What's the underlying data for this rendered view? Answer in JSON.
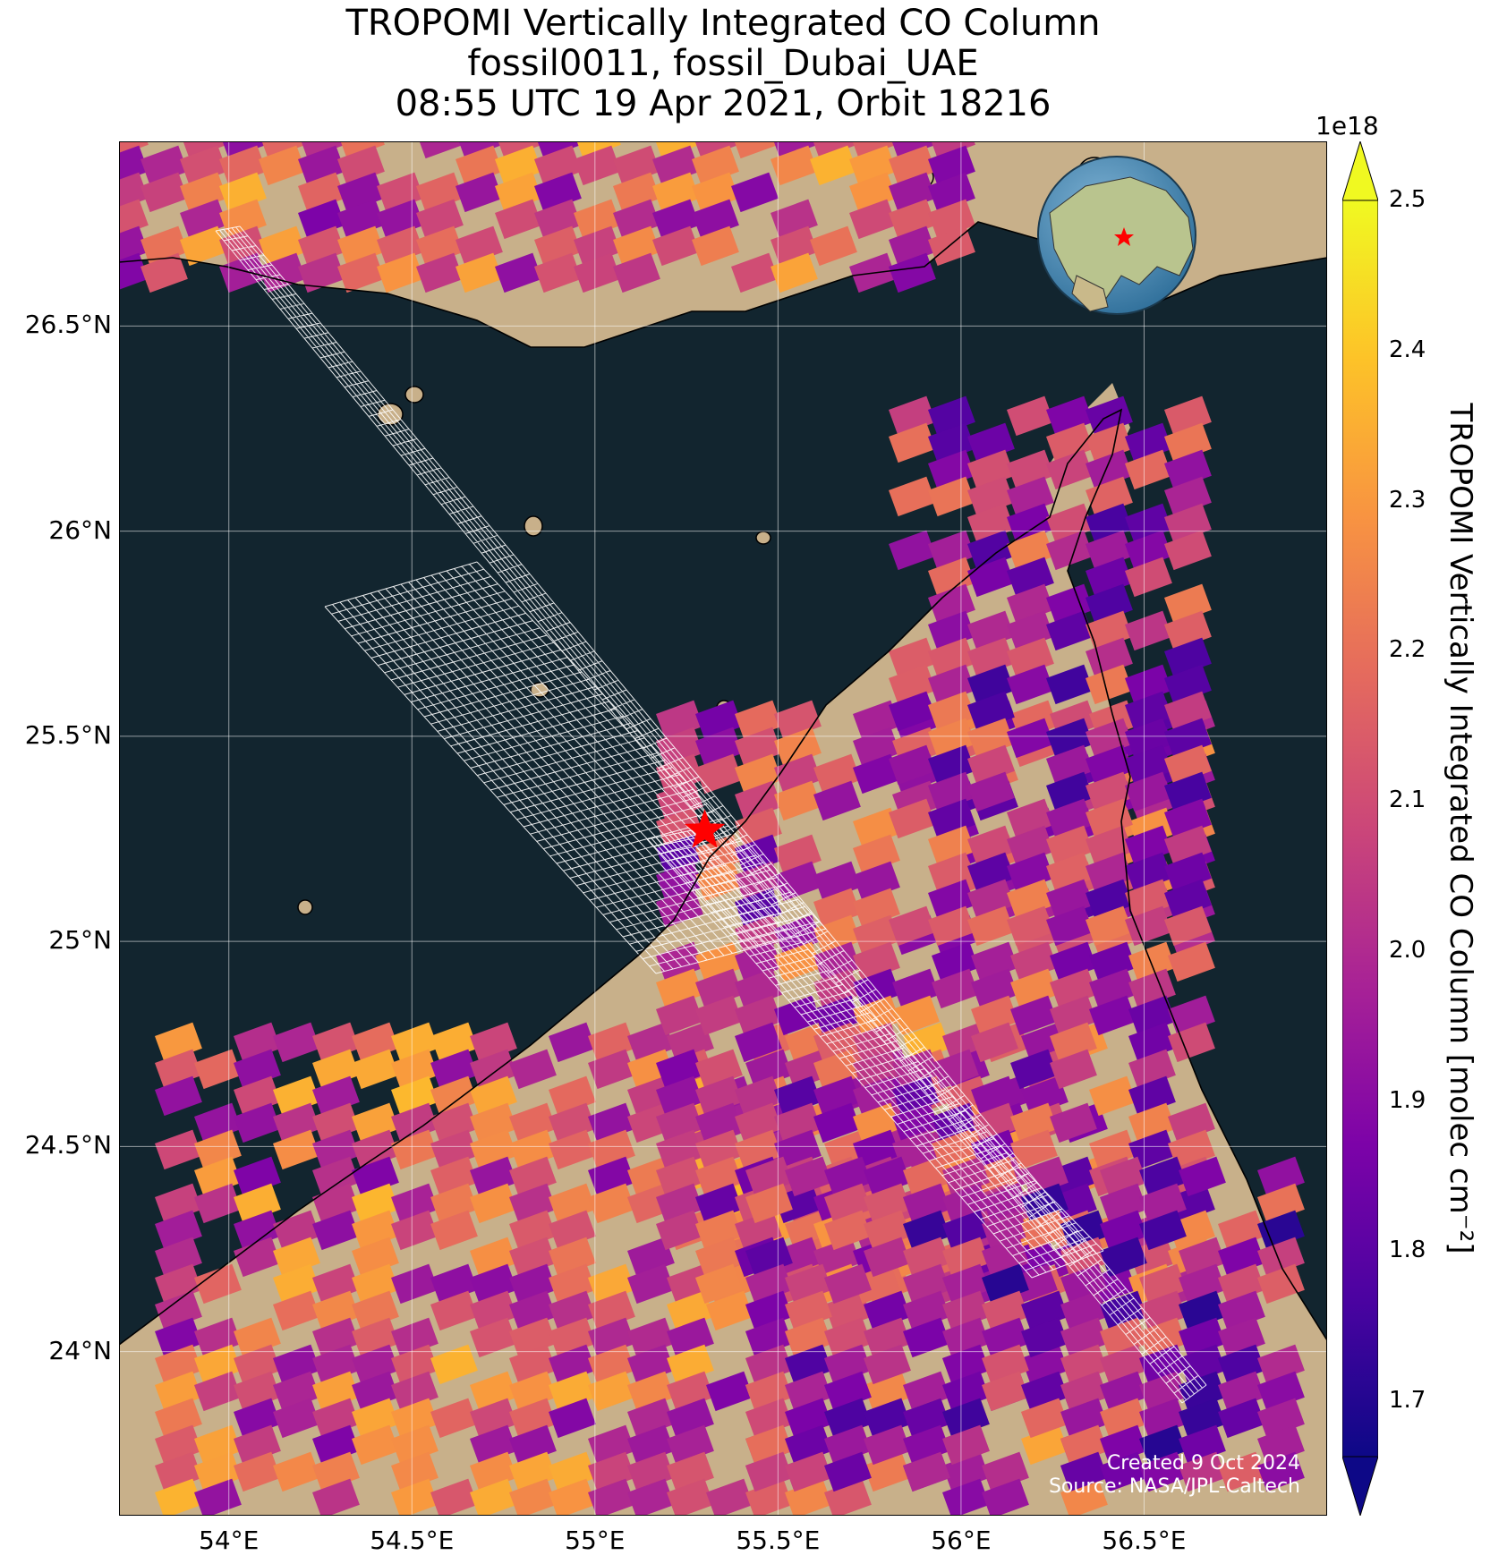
{
  "title": {
    "line1": "TROPOMI Vertically Integrated CO Column",
    "line2": "fossil0011, fossil_Dubai_UAE",
    "line3": "08:55 UTC 19 Apr 2021, Orbit 18216"
  },
  "map": {
    "lon_range": [
      53.7,
      57.0
    ],
    "lat_range": [
      23.6,
      26.95
    ],
    "target_site": {
      "lon": 55.3,
      "lat": 25.27
    },
    "lon_ticks": [
      "54°E",
      "54.5°E",
      "55°E",
      "55.5°E",
      "56°E",
      "56.5°E"
    ],
    "lat_ticks": [
      "24°N",
      "24.5°N",
      "25°N",
      "25.5°N",
      "26°N",
      "26.5°N"
    ],
    "colors": {
      "sea": "#12252f",
      "land": "#c8b08a",
      "coastline": "#000000",
      "gridlines": "#ffffff",
      "target_marker": "#ff0000",
      "footprint_grid": "#ffffff"
    }
  },
  "colorbar": {
    "colormap": "plasma",
    "exponent": "1e18",
    "min": 1.7,
    "max": 2.5,
    "ticks": [
      "1.7",
      "1.8",
      "1.9",
      "2.0",
      "2.1",
      "2.2",
      "2.3",
      "2.4",
      "2.5"
    ],
    "label": "TROPOMI Vertically Integrated CO Column [molec cm⁻²]",
    "extend": "both"
  },
  "credit": {
    "created": "Created 9 Oct 2024",
    "source": "Source: NASA/JPL-Caltech"
  }
}
